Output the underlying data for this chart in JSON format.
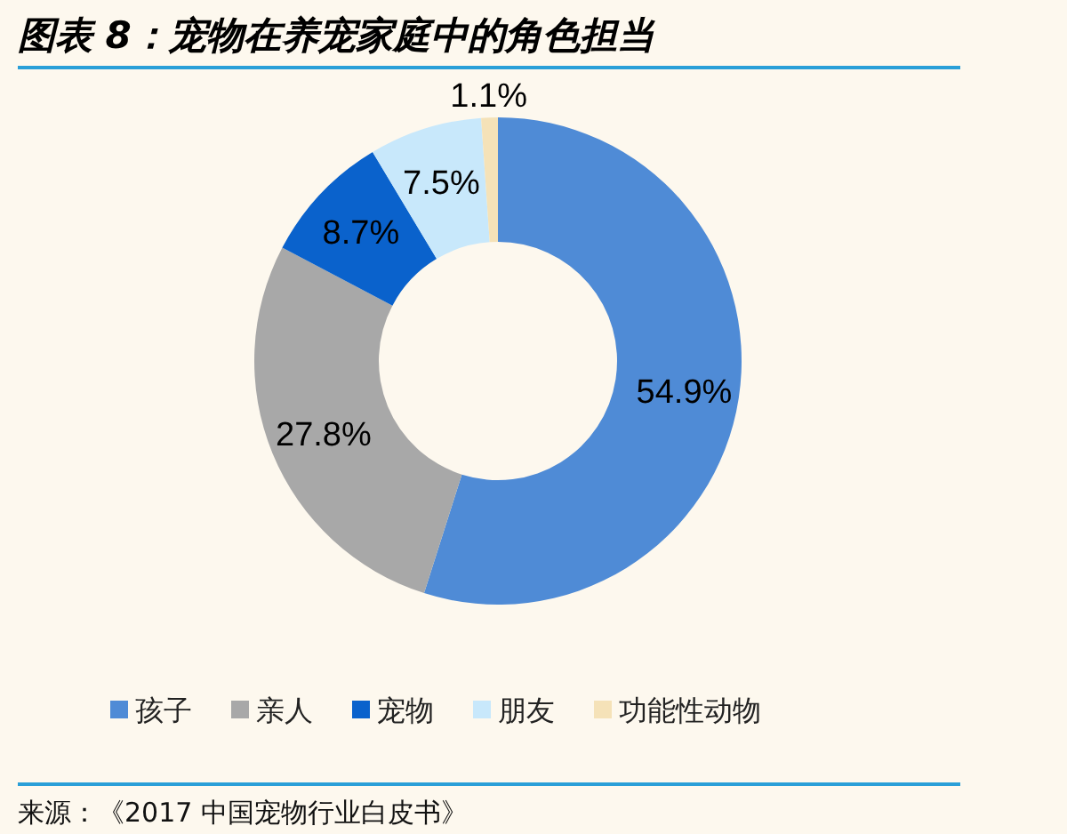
{
  "chart_data": {
    "type": "donut",
    "title": "图表 8：宠物在养宠家庭中的角色担当",
    "categories": [
      "孩子",
      "亲人",
      "宠物",
      "朋友",
      "功能性动物"
    ],
    "values": [
      54.9,
      27.8,
      8.7,
      7.5,
      1.1
    ],
    "colors": [
      "#4f8bd6",
      "#a8a8a8",
      "#0a62cc",
      "#c8e8fb",
      "#f5e2b8"
    ],
    "value_labels": [
      "54.9%",
      "27.8%",
      "8.7%",
      "7.5%",
      "1.1%"
    ],
    "legend": "bottom",
    "annotations": [
      "来源：《2017 中国宠物行业白皮书》"
    ]
  }
}
